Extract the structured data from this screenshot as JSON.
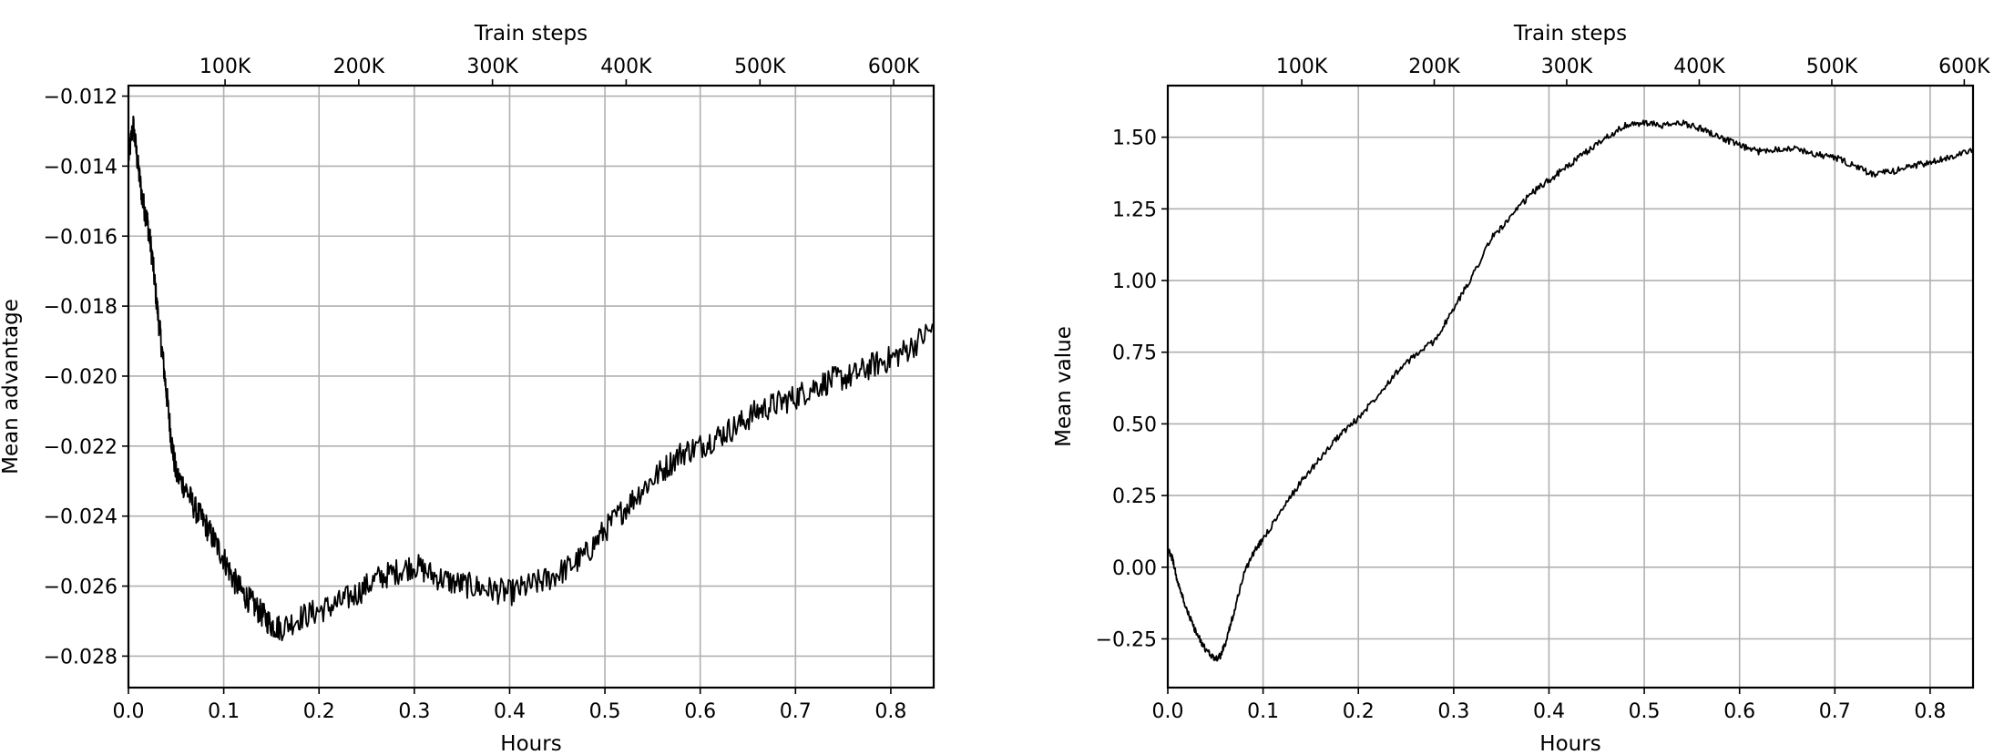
{
  "chart_data": [
    {
      "type": "line",
      "xlabel": "Hours",
      "ylabel": "Mean advantage",
      "top_xlabel": "Train steps",
      "xlim": [
        0.0,
        0.845
      ],
      "ylim": [
        -0.0289,
        -0.0117
      ],
      "x_ticks": [
        0.0,
        0.1,
        0.2,
        0.3,
        0.4,
        0.5,
        0.6,
        0.7,
        0.8
      ],
      "x_tick_labels": [
        "0.0",
        "0.1",
        "0.2",
        "0.3",
        "0.4",
        "0.5",
        "0.6",
        "0.7",
        "0.8"
      ],
      "y_ticks": [
        -0.012,
        -0.014,
        -0.016,
        -0.018,
        -0.02,
        -0.022,
        -0.024,
        -0.026,
        -0.028
      ],
      "y_tick_labels": [
        "−0.012",
        "−0.014",
        "−0.016",
        "−0.018",
        "−0.020",
        "−0.022",
        "−0.024",
        "−0.026",
        "−0.028"
      ],
      "top_ticks": [
        0.1014,
        0.2417,
        0.382,
        0.5223,
        0.6627,
        0.803
      ],
      "top_tick_labels": [
        "100K",
        "200K",
        "300K",
        "400K",
        "500K",
        "600K"
      ],
      "grid": true,
      "series": [
        {
          "color": "#000000",
          "x": [
            0.0,
            0.005,
            0.01,
            0.015,
            0.02,
            0.025,
            0.03,
            0.035,
            0.04,
            0.045,
            0.05,
            0.06,
            0.07,
            0.08,
            0.09,
            0.1,
            0.11,
            0.12,
            0.13,
            0.14,
            0.15,
            0.16,
            0.18,
            0.2,
            0.22,
            0.24,
            0.26,
            0.28,
            0.3,
            0.32,
            0.34,
            0.36,
            0.38,
            0.4,
            0.42,
            0.44,
            0.46,
            0.48,
            0.5,
            0.52,
            0.54,
            0.56,
            0.58,
            0.6,
            0.62,
            0.64,
            0.66,
            0.68,
            0.7,
            0.72,
            0.74,
            0.76,
            0.78,
            0.8,
            0.82,
            0.845
          ],
          "y": [
            -0.0138,
            -0.0128,
            -0.014,
            -0.015,
            -0.0156,
            -0.0166,
            -0.018,
            -0.0192,
            -0.0205,
            -0.0218,
            -0.0228,
            -0.0232,
            -0.0238,
            -0.0242,
            -0.0247,
            -0.0252,
            -0.0258,
            -0.0262,
            -0.0265,
            -0.0268,
            -0.0271,
            -0.0272,
            -0.0269,
            -0.0267,
            -0.0265,
            -0.0262,
            -0.0258,
            -0.0256,
            -0.0254,
            -0.0257,
            -0.0259,
            -0.026,
            -0.0261,
            -0.0262,
            -0.026,
            -0.0258,
            -0.0255,
            -0.0251,
            -0.0244,
            -0.0238,
            -0.0232,
            -0.0227,
            -0.0222,
            -0.022,
            -0.0217,
            -0.0214,
            -0.021,
            -0.0208,
            -0.0206,
            -0.0203,
            -0.0201,
            -0.02,
            -0.0197,
            -0.0195,
            -0.0192,
            -0.0186
          ]
        }
      ]
    },
    {
      "type": "line",
      "xlabel": "Hours",
      "ylabel": "Mean value",
      "top_xlabel": "Train steps",
      "xlim": [
        0.0,
        0.845
      ],
      "ylim": [
        -0.42,
        1.68
      ],
      "x_ticks": [
        0.0,
        0.1,
        0.2,
        0.3,
        0.4,
        0.5,
        0.6,
        0.7,
        0.8
      ],
      "x_tick_labels": [
        "0.0",
        "0.1",
        "0.2",
        "0.3",
        "0.4",
        "0.5",
        "0.6",
        "0.7",
        "0.8"
      ],
      "y_ticks": [
        1.5,
        1.25,
        1.0,
        0.75,
        0.5,
        0.25,
        0.0,
        -0.25
      ],
      "y_tick_labels": [
        "1.50",
        "1.25",
        "1.00",
        "0.75",
        "0.50",
        "0.25",
        "0.00",
        "−0.25"
      ],
      "top_ticks": [
        0.1406,
        0.2796,
        0.4186,
        0.5577,
        0.6968,
        0.8358
      ],
      "top_tick_labels": [
        "100K",
        "200K",
        "300K",
        "400K",
        "500K",
        "600K"
      ],
      "grid": true,
      "series": [
        {
          "color": "#000000",
          "x": [
            0.0,
            0.005,
            0.01,
            0.02,
            0.03,
            0.04,
            0.05,
            0.055,
            0.06,
            0.07,
            0.08,
            0.09,
            0.1,
            0.12,
            0.14,
            0.16,
            0.18,
            0.2,
            0.22,
            0.24,
            0.26,
            0.28,
            0.3,
            0.32,
            0.34,
            0.36,
            0.38,
            0.4,
            0.42,
            0.44,
            0.46,
            0.48,
            0.5,
            0.52,
            0.54,
            0.56,
            0.58,
            0.6,
            0.62,
            0.64,
            0.66,
            0.68,
            0.7,
            0.72,
            0.74,
            0.76,
            0.78,
            0.8,
            0.82,
            0.845
          ],
          "y": [
            0.06,
            0.03,
            -0.05,
            -0.15,
            -0.23,
            -0.29,
            -0.32,
            -0.31,
            -0.27,
            -0.15,
            -0.02,
            0.05,
            0.1,
            0.2,
            0.3,
            0.38,
            0.46,
            0.52,
            0.6,
            0.68,
            0.74,
            0.79,
            0.9,
            1.02,
            1.15,
            1.22,
            1.3,
            1.35,
            1.4,
            1.45,
            1.5,
            1.54,
            1.55,
            1.54,
            1.55,
            1.53,
            1.5,
            1.47,
            1.45,
            1.46,
            1.46,
            1.44,
            1.43,
            1.4,
            1.37,
            1.38,
            1.4,
            1.41,
            1.43,
            1.46
          ]
        }
      ]
    }
  ]
}
